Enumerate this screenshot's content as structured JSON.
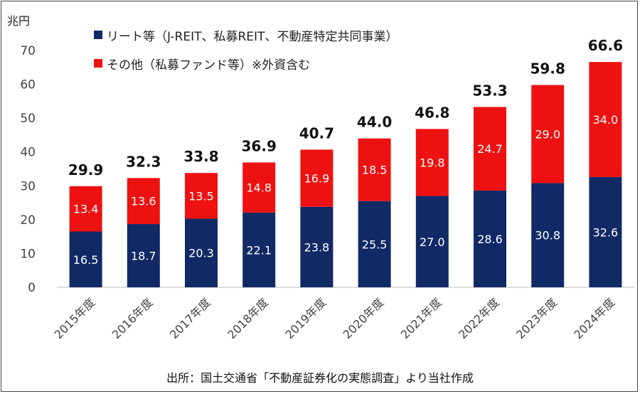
{
  "chart_data": {
    "type": "bar",
    "stacked": true,
    "unit_label": "兆円",
    "categories": [
      "2015年度",
      "2016年度",
      "2017年度",
      "2018年度",
      "2019年度",
      "2020年度",
      "2021年度",
      "2022年度",
      "2023年度",
      "2024年度"
    ],
    "series": [
      {
        "name": "リート等（J-REIT、私募REIT、不動産特定共同事業）",
        "color": "#112a66",
        "values": [
          16.5,
          18.7,
          20.3,
          22.1,
          23.8,
          25.5,
          27.0,
          28.6,
          30.8,
          32.6
        ]
      },
      {
        "name": "その他（私募ファンド等）※外資含む",
        "color": "#ee1111",
        "values": [
          13.4,
          13.6,
          13.5,
          14.8,
          16.9,
          18.5,
          19.8,
          24.7,
          29.0,
          34.0
        ]
      }
    ],
    "totals": [
      29.9,
      32.3,
      33.8,
      36.9,
      40.7,
      44.0,
      46.8,
      53.3,
      59.8,
      66.6
    ],
    "ylim": [
      0,
      70
    ],
    "yticks": [
      0,
      10,
      20,
      30,
      40,
      50,
      60,
      70
    ],
    "source": "出所：国土交通省「不動産証券化の実態調査」より当社作成"
  }
}
